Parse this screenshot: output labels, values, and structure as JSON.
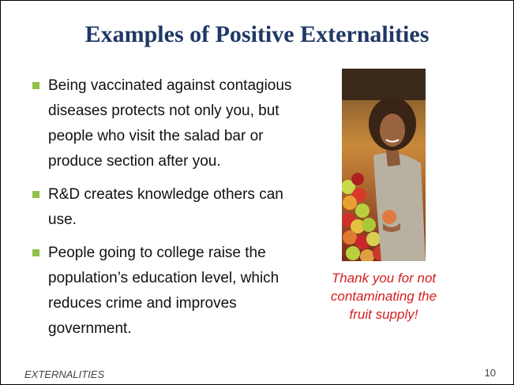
{
  "header": {
    "title": "Examples of Positive Externalities"
  },
  "bullets": [
    "Being vaccinated against contagious diseases protects not only you, but people who visit the salad bar or produce section after you.",
    "R&D creates knowledge others can use.",
    "People going to college raise the population’s education level, which reduces crime and improves government."
  ],
  "caption": "Thank you for not contaminating the fruit supply!",
  "footer": {
    "label": "EXTERNALITIES",
    "page_number": "10"
  }
}
